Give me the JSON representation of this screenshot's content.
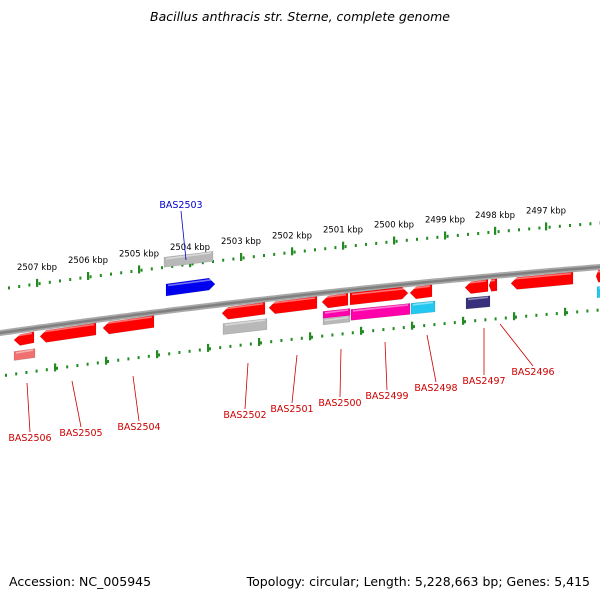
{
  "title": "Bacillus anthracis str. Sterne, complete genome",
  "footer": {
    "accession": "Accession: NC_005945",
    "summary": "Topology: circular; Length: 5,228,663 bp; Genes: 5,415"
  },
  "colors": {
    "backbone": "#808080",
    "scale_ticks": "#228B22",
    "gene_red": "#ff0000",
    "gene_grey": "#b8b8b8",
    "gene_blue": "#0000ee",
    "gene_magenta": "#ff00aa",
    "gene_cyan": "#22c8f0",
    "gene_navy": "#38307a",
    "gene_pink": "#f07070",
    "selected_label": "#0000cc",
    "gene_label": "#cc0000"
  },
  "scale_labels": [
    "2507 kbp",
    "2506 kbp",
    "2505 kbp",
    "2504 kbp",
    "2503 kbp",
    "2502 kbp",
    "2501 kbp",
    "2500 kbp",
    "2499 kbp",
    "2498 kbp",
    "2497 kbp"
  ],
  "selected_gene": "BAS2503",
  "gene_labels": [
    "BAS2506",
    "BAS2505",
    "BAS2504",
    "BAS2502",
    "BAS2501",
    "BAS2500",
    "BAS2499",
    "BAS2498",
    "BAS2497",
    "BAS2496"
  ]
}
